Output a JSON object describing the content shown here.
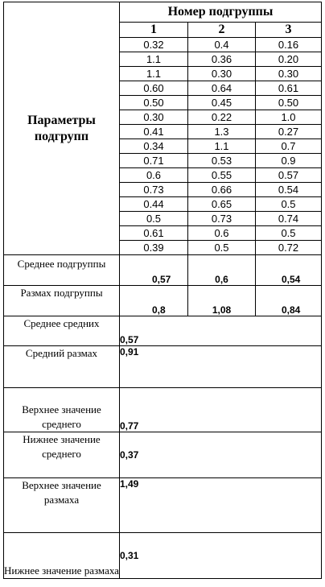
{
  "header": {
    "group_title": "Номер подгруппы",
    "params_title": "Параметры подгрупп",
    "subgroups": [
      "1",
      "2",
      "3"
    ]
  },
  "values": [
    [
      "0.32",
      "0.4",
      "0.16"
    ],
    [
      "1.1",
      "0.36",
      "0.20"
    ],
    [
      "1.1",
      "0.30",
      "0.30"
    ],
    [
      "0.60",
      "0.64",
      "0.61"
    ],
    [
      "0.50",
      "0.45",
      "0.50"
    ],
    [
      "0.30",
      "0.22",
      "1.0"
    ],
    [
      "0.41",
      "1.3",
      "0.27"
    ],
    [
      "0.34",
      "1.1",
      "0.7"
    ],
    [
      "0.71",
      "0.53",
      "0.9"
    ],
    [
      "0.6",
      "0.55",
      "0.57"
    ],
    [
      "0.73",
      "0.66",
      "0.54"
    ],
    [
      "0.44",
      "0.65",
      "0.5"
    ],
    [
      "0.5",
      "0.73",
      "0.74"
    ],
    [
      "0.61",
      "0.6",
      "0.5"
    ],
    [
      "0.39",
      "0.5",
      "0.72"
    ]
  ],
  "subgroup_mean": {
    "label": "Среднее подгруппы",
    "values": [
      "0,57",
      "0,6",
      "0,54"
    ]
  },
  "subgroup_range": {
    "label": "Размах подгруппы",
    "values": [
      "0,8",
      "1,08",
      "0,84"
    ]
  },
  "summary": {
    "mean_of_means": {
      "label": "Среднее средних",
      "value": "0,57"
    },
    "mean_range": {
      "label": "Средний размах",
      "value": "0,91"
    },
    "upper_mean": {
      "label": "Верхнее значение среднего",
      "value": "0,77"
    },
    "lower_mean": {
      "label": "Нижнее значение среднего",
      "value": "0,37"
    },
    "upper_range": {
      "label": "Верхнее значение размаха",
      "value": "1,49"
    },
    "lower_range": {
      "label": "Нижнее значение размаха",
      "value": "0,31"
    }
  }
}
